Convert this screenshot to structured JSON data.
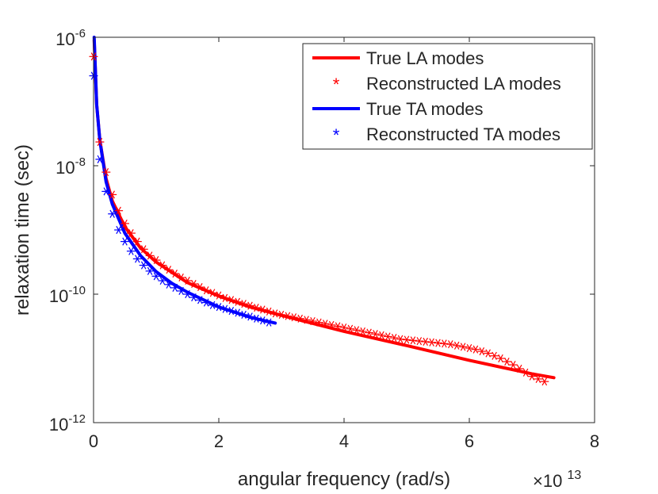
{
  "chart_data": {
    "type": "line",
    "title": "",
    "xlabel": "angular frequency (rad/s)",
    "ylabel": "relaxation time (sec)",
    "x_multiplier_label": "×10",
    "x_multiplier_exp": "13",
    "xlim": [
      0,
      8
    ],
    "ylim_log10": [
      -12,
      -6
    ],
    "x_ticks": [
      0,
      2,
      4,
      6,
      8
    ],
    "x_tick_labels": [
      "0",
      "2",
      "4",
      "6",
      "8"
    ],
    "y_ticks": [
      {
        "exp": -6,
        "base": "10",
        "sup": "-6"
      },
      {
        "exp": -8,
        "base": "10",
        "sup": "-8"
      },
      {
        "exp": -10,
        "base": "10",
        "sup": "-10"
      },
      {
        "exp": -12,
        "base": "10",
        "sup": "-12"
      }
    ],
    "legend_position": "top-right",
    "series": [
      {
        "name": "True LA modes",
        "style": "line",
        "color": "#ff0000",
        "x": [
          0.01,
          0.05,
          0.1,
          0.2,
          0.3,
          0.5,
          0.75,
          1.0,
          1.5,
          2.0,
          2.5,
          3.0,
          4.0,
          5.0,
          6.0,
          7.0,
          7.35
        ],
        "log10_y": [
          -6.05,
          -7.05,
          -7.6,
          -8.2,
          -8.55,
          -8.95,
          -9.28,
          -9.5,
          -9.82,
          -10.03,
          -10.2,
          -10.33,
          -10.58,
          -10.8,
          -11.03,
          -11.24,
          -11.3
        ]
      },
      {
        "name": "Reconstructed LA modes",
        "style": "markers",
        "marker": "asterisk",
        "color": "#ff0000",
        "x": [
          0.0,
          0.1,
          0.2,
          0.3,
          0.4,
          0.5,
          0.6,
          0.7,
          0.8,
          0.9,
          1.0,
          1.1,
          1.2,
          1.3,
          1.4,
          1.5,
          1.6,
          1.7,
          1.8,
          1.9,
          2.0,
          2.1,
          2.2,
          2.3,
          2.4,
          2.5,
          2.6,
          2.7,
          2.8,
          2.9,
          3.0,
          3.1,
          3.2,
          3.3,
          3.4,
          3.5,
          3.6,
          3.7,
          3.8,
          3.9,
          4.0,
          4.1,
          4.2,
          4.3,
          4.4,
          4.5,
          4.6,
          4.7,
          4.8,
          4.9,
          5.0,
          5.1,
          5.2,
          5.3,
          5.4,
          5.5,
          5.6,
          5.7,
          5.8,
          5.9,
          6.0,
          6.1,
          6.2,
          6.3,
          6.4,
          6.5,
          6.6,
          6.7,
          6.8,
          6.9,
          7.0,
          7.1,
          7.2
        ],
        "log10_y": [
          -6.3,
          -7.63,
          -8.1,
          -8.45,
          -8.7,
          -8.9,
          -9.05,
          -9.18,
          -9.3,
          -9.4,
          -9.47,
          -9.55,
          -9.62,
          -9.68,
          -9.74,
          -9.79,
          -9.84,
          -9.89,
          -9.94,
          -9.98,
          -10.02,
          -10.06,
          -10.09,
          -10.12,
          -10.15,
          -10.18,
          -10.21,
          -10.24,
          -10.27,
          -10.3,
          -10.32,
          -10.34,
          -10.36,
          -10.38,
          -10.4,
          -10.42,
          -10.44,
          -10.46,
          -10.48,
          -10.5,
          -10.52,
          -10.54,
          -10.56,
          -10.58,
          -10.6,
          -10.62,
          -10.64,
          -10.66,
          -10.68,
          -10.7,
          -10.71,
          -10.72,
          -10.73,
          -10.74,
          -10.75,
          -10.76,
          -10.77,
          -10.78,
          -10.8,
          -10.82,
          -10.84,
          -10.86,
          -10.89,
          -10.92,
          -10.96,
          -11.0,
          -11.05,
          -11.1,
          -11.16,
          -11.22,
          -11.28,
          -11.32,
          -11.36
        ]
      },
      {
        "name": "True TA modes",
        "style": "line",
        "color": "#0000ff",
        "x": [
          0.01,
          0.05,
          0.1,
          0.2,
          0.3,
          0.5,
          0.75,
          1.0,
          1.25,
          1.5,
          2.0,
          2.5,
          2.9
        ],
        "log10_y": [
          -6.0,
          -7.05,
          -7.6,
          -8.25,
          -8.6,
          -9.05,
          -9.4,
          -9.65,
          -9.83,
          -9.97,
          -10.2,
          -10.36,
          -10.45
        ]
      },
      {
        "name": "Reconstructed TA modes",
        "style": "markers",
        "marker": "asterisk",
        "color": "#0000ff",
        "x": [
          0.0,
          0.1,
          0.2,
          0.3,
          0.4,
          0.5,
          0.6,
          0.7,
          0.8,
          0.9,
          1.0,
          1.1,
          1.2,
          1.3,
          1.4,
          1.5,
          1.6,
          1.7,
          1.8,
          1.9,
          2.0,
          2.1,
          2.2,
          2.3,
          2.4,
          2.5,
          2.6,
          2.7,
          2.8
        ],
        "log10_y": [
          -6.6,
          -7.9,
          -8.4,
          -8.75,
          -9.0,
          -9.18,
          -9.33,
          -9.45,
          -9.55,
          -9.64,
          -9.72,
          -9.79,
          -9.85,
          -9.9,
          -9.95,
          -10.0,
          -10.05,
          -10.09,
          -10.13,
          -10.17,
          -10.2,
          -10.23,
          -10.26,
          -10.29,
          -10.32,
          -10.35,
          -10.38,
          -10.41,
          -10.44
        ]
      }
    ]
  }
}
